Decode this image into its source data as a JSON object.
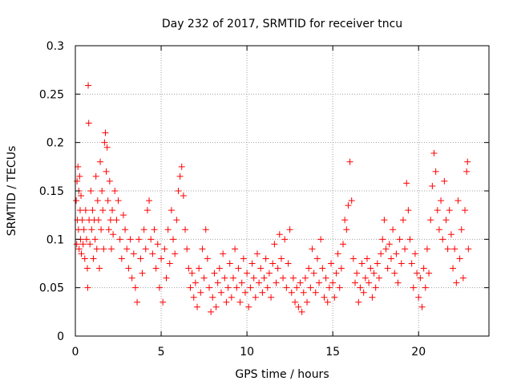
{
  "chart_data": {
    "type": "scatter",
    "title": "Day 232 of 2017, SRMTID for receiver tncu",
    "xlabel": "GPS time / hours",
    "ylabel": "SRMTID / TECUs",
    "xlim": [
      0,
      24.1
    ],
    "ylim": [
      0,
      0.3
    ],
    "xticks": [
      0,
      5,
      10,
      15,
      20
    ],
    "xtick_labels": [
      "0",
      "5",
      "10",
      "15",
      "20"
    ],
    "yticks": [
      0,
      0.05,
      0.1,
      0.15,
      0.2,
      0.25,
      0.3
    ],
    "ytick_labels": [
      "0",
      "0.05",
      "0.1",
      "0.15",
      "0.2",
      "0.25",
      "0.3"
    ],
    "grid": true,
    "marker": "+",
    "color": "#ff0000",
    "series": [
      {
        "name": "SRMTID",
        "points": [
          [
            0.05,
            0.14
          ],
          [
            0.08,
            0.095
          ],
          [
            0.1,
            0.16
          ],
          [
            0.12,
            0.12
          ],
          [
            0.15,
            0.175
          ],
          [
            0.18,
            0.11
          ],
          [
            0.2,
            0.15
          ],
          [
            0.22,
            0.09
          ],
          [
            0.25,
            0.165
          ],
          [
            0.28,
            0.13
          ],
          [
            0.3,
            0.1
          ],
          [
            0.33,
            0.145
          ],
          [
            0.35,
            0.085
          ],
          [
            0.4,
            0.12
          ],
          [
            0.45,
            0.095
          ],
          [
            0.5,
            0.11
          ],
          [
            0.55,
            0.08
          ],
          [
            0.6,
            0.13
          ],
          [
            0.65,
            0.1
          ],
          [
            0.7,
            0.07
          ],
          [
            0.72,
            0.05
          ],
          [
            0.75,
            0.259
          ],
          [
            0.78,
            0.22
          ],
          [
            0.8,
            0.12
          ],
          [
            0.85,
            0.095
          ],
          [
            0.9,
            0.15
          ],
          [
            0.95,
            0.11
          ],
          [
            1.0,
            0.13
          ],
          [
            1.05,
            0.08
          ],
          [
            1.1,
            0.12
          ],
          [
            1.15,
            0.1
          ],
          [
            1.2,
            0.165
          ],
          [
            1.25,
            0.09
          ],
          [
            1.3,
            0.14
          ],
          [
            1.35,
            0.12
          ],
          [
            1.4,
            0.07
          ],
          [
            1.45,
            0.18
          ],
          [
            1.5,
            0.11
          ],
          [
            1.55,
            0.15
          ],
          [
            1.6,
            0.13
          ],
          [
            1.65,
            0.09
          ],
          [
            1.7,
            0.2
          ],
          [
            1.75,
            0.21
          ],
          [
            1.8,
            0.17
          ],
          [
            1.85,
            0.195
          ],
          [
            1.9,
            0.14
          ],
          [
            1.95,
            0.11
          ],
          [
            2.0,
            0.16
          ],
          [
            2.05,
            0.12
          ],
          [
            2.1,
            0.09
          ],
          [
            2.15,
            0.13
          ],
          [
            2.2,
            0.105
          ],
          [
            2.3,
            0.15
          ],
          [
            2.4,
            0.12
          ],
          [
            2.5,
            0.14
          ],
          [
            2.6,
            0.1
          ],
          [
            2.7,
            0.08
          ],
          [
            2.8,
            0.125
          ],
          [
            2.9,
            0.11
          ],
          [
            3.0,
            0.09
          ],
          [
            3.1,
            0.07
          ],
          [
            3.2,
            0.1
          ],
          [
            3.3,
            0.06
          ],
          [
            3.4,
            0.085
          ],
          [
            3.5,
            0.05
          ],
          [
            3.6,
            0.035
          ],
          [
            3.7,
            0.1
          ],
          [
            3.8,
            0.08
          ],
          [
            3.9,
            0.065
          ],
          [
            4.0,
            0.11
          ],
          [
            4.1,
            0.09
          ],
          [
            4.2,
            0.13
          ],
          [
            4.3,
            0.14
          ],
          [
            4.4,
            0.1
          ],
          [
            4.5,
            0.085
          ],
          [
            4.6,
            0.11
          ],
          [
            4.7,
            0.07
          ],
          [
            4.8,
            0.095
          ],
          [
            4.9,
            0.05
          ],
          [
            5.0,
            0.08
          ],
          [
            5.1,
            0.035
          ],
          [
            5.2,
            0.09
          ],
          [
            5.3,
            0.06
          ],
          [
            5.4,
            0.11
          ],
          [
            5.5,
            0.075
          ],
          [
            5.6,
            0.13
          ],
          [
            5.7,
            0.1
          ],
          [
            5.8,
            0.085
          ],
          [
            5.9,
            0.12
          ],
          [
            6.0,
            0.15
          ],
          [
            6.1,
            0.165
          ],
          [
            6.2,
            0.175
          ],
          [
            6.3,
            0.145
          ],
          [
            6.4,
            0.11
          ],
          [
            6.5,
            0.09
          ],
          [
            6.6,
            0.07
          ],
          [
            6.7,
            0.05
          ],
          [
            6.8,
            0.065
          ],
          [
            6.9,
            0.04
          ],
          [
            7.0,
            0.055
          ],
          [
            7.1,
            0.03
          ],
          [
            7.2,
            0.07
          ],
          [
            7.3,
            0.045
          ],
          [
            7.4,
            0.09
          ],
          [
            7.5,
            0.06
          ],
          [
            7.6,
            0.11
          ],
          [
            7.7,
            0.08
          ],
          [
            7.8,
            0.05
          ],
          [
            7.9,
            0.025
          ],
          [
            8.0,
            0.04
          ],
          [
            8.1,
            0.065
          ],
          [
            8.2,
            0.03
          ],
          [
            8.3,
            0.055
          ],
          [
            8.4,
            0.07
          ],
          [
            8.5,
            0.045
          ],
          [
            8.6,
            0.085
          ],
          [
            8.7,
            0.06
          ],
          [
            8.8,
            0.035
          ],
          [
            8.9,
            0.05
          ],
          [
            9.0,
            0.075
          ],
          [
            9.1,
            0.04
          ],
          [
            9.2,
            0.06
          ],
          [
            9.3,
            0.09
          ],
          [
            9.4,
            0.05
          ],
          [
            9.5,
            0.07
          ],
          [
            9.6,
            0.035
          ],
          [
            9.7,
            0.055
          ],
          [
            9.8,
            0.08
          ],
          [
            9.9,
            0.045
          ],
          [
            10.0,
            0.065
          ],
          [
            10.1,
            0.03
          ],
          [
            10.2,
            0.05
          ],
          [
            10.3,
            0.075
          ],
          [
            10.4,
            0.06
          ],
          [
            10.5,
            0.04
          ],
          [
            10.6,
            0.085
          ],
          [
            10.7,
            0.055
          ],
          [
            10.8,
            0.07
          ],
          [
            10.9,
            0.045
          ],
          [
            11.0,
            0.06
          ],
          [
            11.1,
            0.08
          ],
          [
            11.2,
            0.05
          ],
          [
            11.3,
            0.065
          ],
          [
            11.4,
            0.04
          ],
          [
            11.5,
            0.075
          ],
          [
            11.6,
            0.095
          ],
          [
            11.7,
            0.055
          ],
          [
            11.8,
            0.07
          ],
          [
            11.9,
            0.105
          ],
          [
            12.0,
            0.08
          ],
          [
            12.1,
            0.06
          ],
          [
            12.2,
            0.1
          ],
          [
            12.3,
            0.05
          ],
          [
            12.4,
            0.075
          ],
          [
            12.5,
            0.11
          ],
          [
            12.6,
            0.045
          ],
          [
            12.7,
            0.06
          ],
          [
            12.8,
            0.035
          ],
          [
            12.9,
            0.05
          ],
          [
            13.0,
            0.03
          ],
          [
            13.1,
            0.055
          ],
          [
            13.2,
            0.025
          ],
          [
            13.3,
            0.045
          ],
          [
            13.4,
            0.06
          ],
          [
            13.5,
            0.035
          ],
          [
            13.6,
            0.07
          ],
          [
            13.7,
            0.05
          ],
          [
            13.8,
            0.09
          ],
          [
            13.9,
            0.065
          ],
          [
            14.0,
            0.045
          ],
          [
            14.1,
            0.08
          ],
          [
            14.2,
            0.055
          ],
          [
            14.3,
            0.1
          ],
          [
            14.4,
            0.07
          ],
          [
            14.5,
            0.04
          ],
          [
            14.6,
            0.06
          ],
          [
            14.7,
            0.035
          ],
          [
            14.8,
            0.05
          ],
          [
            14.9,
            0.075
          ],
          [
            15.0,
            0.055
          ],
          [
            15.1,
            0.04
          ],
          [
            15.2,
            0.065
          ],
          [
            15.3,
            0.085
          ],
          [
            15.4,
            0.05
          ],
          [
            15.5,
            0.07
          ],
          [
            15.6,
            0.095
          ],
          [
            15.7,
            0.12
          ],
          [
            15.8,
            0.11
          ],
          [
            15.9,
            0.135
          ],
          [
            16.0,
            0.18
          ],
          [
            16.1,
            0.14
          ],
          [
            16.2,
            0.08
          ],
          [
            16.3,
            0.055
          ],
          [
            16.4,
            0.065
          ],
          [
            16.5,
            0.035
          ],
          [
            16.6,
            0.05
          ],
          [
            16.7,
            0.075
          ],
          [
            16.8,
            0.045
          ],
          [
            16.9,
            0.06
          ],
          [
            17.0,
            0.08
          ],
          [
            17.1,
            0.055
          ],
          [
            17.2,
            0.07
          ],
          [
            17.3,
            0.04
          ],
          [
            17.4,
            0.065
          ],
          [
            17.5,
            0.05
          ],
          [
            17.6,
            0.075
          ],
          [
            17.7,
            0.06
          ],
          [
            17.8,
            0.085
          ],
          [
            17.9,
            0.1
          ],
          [
            18.0,
            0.12
          ],
          [
            18.1,
            0.09
          ],
          [
            18.2,
            0.07
          ],
          [
            18.3,
            0.095
          ],
          [
            18.4,
            0.08
          ],
          [
            18.5,
            0.11
          ],
          [
            18.6,
            0.065
          ],
          [
            18.7,
            0.085
          ],
          [
            18.8,
            0.055
          ],
          [
            18.9,
            0.1
          ],
          [
            19.0,
            0.075
          ],
          [
            19.1,
            0.12
          ],
          [
            19.2,
            0.09
          ],
          [
            19.3,
            0.158
          ],
          [
            19.4,
            0.13
          ],
          [
            19.5,
            0.1
          ],
          [
            19.6,
            0.075
          ],
          [
            19.7,
            0.05
          ],
          [
            19.8,
            0.085
          ],
          [
            19.9,
            0.065
          ],
          [
            20.0,
            0.04
          ],
          [
            20.1,
            0.06
          ],
          [
            20.2,
            0.03
          ],
          [
            20.3,
            0.07
          ],
          [
            20.4,
            0.05
          ],
          [
            20.5,
            0.09
          ],
          [
            20.6,
            0.065
          ],
          [
            20.7,
            0.12
          ],
          [
            20.8,
            0.155
          ],
          [
            20.9,
            0.189
          ],
          [
            21.0,
            0.17
          ],
          [
            21.1,
            0.13
          ],
          [
            21.2,
            0.11
          ],
          [
            21.3,
            0.14
          ],
          [
            21.4,
            0.1
          ],
          [
            21.5,
            0.16
          ],
          [
            21.6,
            0.12
          ],
          [
            21.7,
            0.09
          ],
          [
            21.8,
            0.13
          ],
          [
            21.9,
            0.105
          ],
          [
            22.0,
            0.07
          ],
          [
            22.1,
            0.09
          ],
          [
            22.2,
            0.055
          ],
          [
            22.3,
            0.14
          ],
          [
            22.4,
            0.08
          ],
          [
            22.5,
            0.11
          ],
          [
            22.6,
            0.06
          ],
          [
            22.7,
            0.13
          ],
          [
            22.8,
            0.17
          ],
          [
            22.85,
            0.18
          ],
          [
            22.9,
            0.09
          ]
        ]
      }
    ]
  }
}
